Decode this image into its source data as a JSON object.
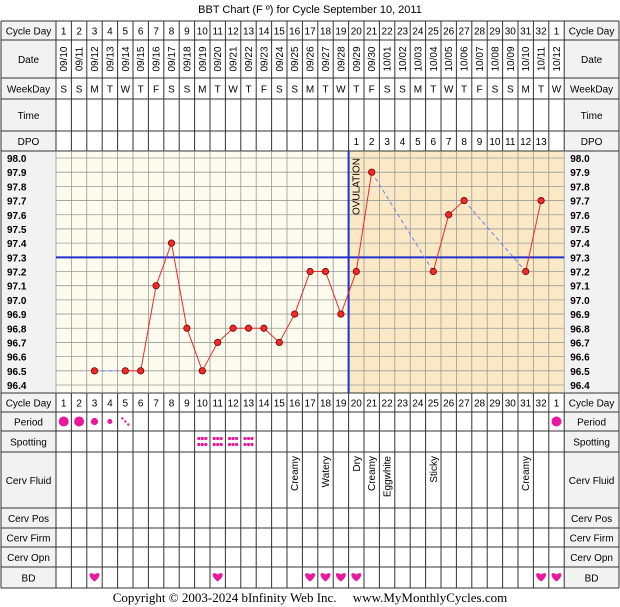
{
  "title": "BBT Chart (F º) for Cycle September 10, 2011",
  "copyright": "Copyright © 2003-2024 bInfinity Web Inc.     www.MyMonthlyCycles.com",
  "labels": {
    "cycle_day": "Cycle Day",
    "date": "Date",
    "weekday": "WeekDay",
    "time": "Time",
    "dpo": "DPO",
    "period": "Period",
    "spotting": "Spotting",
    "cerv_fluid": "Cerv Fluid",
    "cerv_pos": "Cerv Pos",
    "cerv_firm": "Cerv Firm",
    "cerv_opn": "Cerv Opn",
    "bd": "BD",
    "ovulation": "OVULATION"
  },
  "colors": {
    "grid_bg_pre": "#fdfbee",
    "grid_bg_post": "#fbe9c6",
    "label_bg": "#f2f2f2",
    "data_line": "#ee2a2a",
    "point_fill": "#ee2a2a",
    "coverline": "#1f2fd0",
    "ovulation_line": "#1f2fd0",
    "dashed_line": "#6f7fe8",
    "period": "#e8199e",
    "spotting": "#e8199e",
    "heart": "#e8199e"
  },
  "chart_data": {
    "type": "line",
    "cycle_days": [
      "1",
      "2",
      "3",
      "4",
      "5",
      "6",
      "7",
      "8",
      "9",
      "10",
      "11",
      "12",
      "13",
      "14",
      "15",
      "16",
      "17",
      "18",
      "19",
      "20",
      "21",
      "22",
      "23",
      "24",
      "25",
      "26",
      "27",
      "28",
      "29",
      "30",
      "31",
      "32",
      "1"
    ],
    "dates": [
      "09/10",
      "09/11",
      "09/12",
      "09/13",
      "09/14",
      "09/15",
      "09/16",
      "09/17",
      "09/18",
      "09/19",
      "09/20",
      "09/21",
      "09/22",
      "09/23",
      "09/24",
      "09/25",
      "09/26",
      "09/27",
      "09/28",
      "09/29",
      "09/30",
      "10/01",
      "10/02",
      "10/03",
      "10/04",
      "10/05",
      "10/06",
      "10/07",
      "10/08",
      "10/09",
      "10/10",
      "10/11",
      "10/12"
    ],
    "weekdays": [
      "S",
      "S",
      "M",
      "T",
      "W",
      "T",
      "F",
      "S",
      "S",
      "M",
      "T",
      "W",
      "T",
      "F",
      "S",
      "S",
      "M",
      "T",
      "W",
      "T",
      "F",
      "S",
      "S",
      "M",
      "T",
      "W",
      "T",
      "F",
      "S",
      "S",
      "M",
      "T",
      "W"
    ],
    "dpo": [
      "",
      "",
      "",
      "",
      "",
      "",
      "",
      "",
      "",
      "",
      "",
      "",
      "",
      "",
      "",
      "",
      "",
      "",
      "",
      "1",
      "2",
      "3",
      "4",
      "5",
      "6",
      "7",
      "8",
      "9",
      "10",
      "11",
      "12",
      "13",
      ""
    ],
    "temperatures": [
      null,
      null,
      96.5,
      null,
      96.5,
      96.5,
      97.1,
      97.4,
      96.8,
      96.5,
      96.7,
      96.8,
      96.8,
      96.8,
      96.7,
      96.9,
      97.2,
      97.2,
      96.9,
      97.2,
      97.9,
      null,
      null,
      null,
      97.2,
      97.6,
      97.7,
      null,
      null,
      null,
      97.2,
      97.7,
      null
    ],
    "y_ticks": [
      "98.0",
      "97.9",
      "97.8",
      "97.7",
      "97.6",
      "97.5",
      "97.4",
      "97.3",
      "97.2",
      "97.1",
      "97.0",
      "96.9",
      "96.8",
      "96.7",
      "96.6",
      "96.5",
      "96.4"
    ],
    "ylim": [
      96.4,
      98.0
    ],
    "coverline": 97.3,
    "ovulation_after_day": 19,
    "period": [
      "heavy",
      "heavy",
      "medium",
      "light",
      "spotting",
      "",
      "",
      "",
      "",
      "",
      "",
      "",
      "",
      "",
      "",
      "",
      "",
      "",
      "",
      "",
      "",
      "",
      "",
      "",
      "",
      "",
      "",
      "",
      "",
      "",
      "",
      "",
      "heavy"
    ],
    "spotting": [
      "",
      "",
      "",
      "",
      "",
      "",
      "",
      "",
      "",
      "yes",
      "yes",
      "yes",
      "yes",
      "",
      "",
      "",
      "",
      "",
      "",
      "",
      "",
      "",
      "",
      "",
      "",
      "",
      "",
      "",
      "",
      "",
      "",
      "",
      ""
    ],
    "cerv_fluid": [
      "",
      "",
      "",
      "",
      "",
      "",
      "",
      "",
      "",
      "",
      "",
      "",
      "",
      "",
      "",
      "Creamy",
      "",
      "Watery",
      "",
      "Dry",
      "Creamy",
      "Eggwhite",
      "",
      "",
      "Sticky",
      "",
      "",
      "",
      "",
      "",
      "Creamy",
      "",
      ""
    ],
    "bd": [
      "",
      "",
      "yes",
      "",
      "",
      "",
      "",
      "",
      "",
      "",
      "yes",
      "",
      "",
      "",
      "",
      "",
      "yes",
      "yes",
      "yes",
      "yes",
      "",
      "",
      "",
      "",
      "",
      "",
      "",
      "",
      "",
      "",
      "",
      "yes",
      "yes"
    ]
  }
}
